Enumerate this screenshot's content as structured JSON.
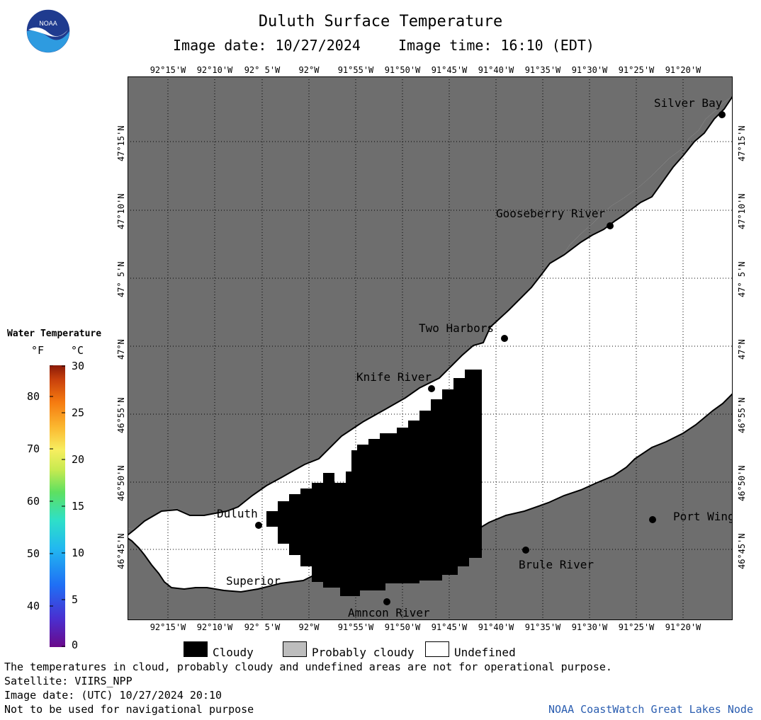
{
  "header": {
    "title": "Duluth Surface Temperature",
    "image_date": "Image date: 10/27/2024",
    "image_time": "Image time: 16:10 (EDT)"
  },
  "logo": {
    "text": "NOAA",
    "icon": "noaa-logo-icon",
    "colors": [
      "#1f3b8f",
      "#2e9be0",
      "#ffffff"
    ]
  },
  "map": {
    "colors": {
      "land": "#6e6e6e",
      "water_undefined": "#ffffff",
      "cloudy": "#000000",
      "grid": "#000000"
    },
    "lon_labels": [
      "92°15'W",
      "92°10'W",
      "92° 5'W",
      "92°W",
      "91°55'W",
      "91°50'W",
      "91°45'W",
      "91°40'W",
      "91°35'W",
      "91°30'W",
      "91°25'W",
      "91°20'W"
    ],
    "lon_labels_bottom": [
      "92°15'W",
      "92°10'W",
      "92° 5'W",
      "92°W",
      "91°55'W",
      "91°50'W",
      "91°45'W",
      "91°40'W",
      "91°35'W",
      "91°30'W",
      "91°25'W",
      "91°20'W"
    ],
    "lat_labels": [
      "47°15'N",
      "47°10'N",
      "47° 5'N",
      "47°N",
      "46°55'N",
      "46°50'N",
      "46°45'N"
    ],
    "places": [
      "Silver Bay",
      "Gooseberry River",
      "Two Harbors",
      "Knife River",
      "Duluth",
      "Superior",
      "Amncon River",
      "Brule River",
      "Port Wing"
    ]
  },
  "colorbar": {
    "title": "Water Temperature",
    "units": [
      "°F",
      "°C"
    ],
    "f_ticks": [
      "80",
      "70",
      "60",
      "50",
      "40"
    ],
    "c_ticks": [
      "30",
      "25",
      "20",
      "15",
      "10",
      "5",
      "0"
    ],
    "range_c": [
      0,
      30
    ],
    "range_f": [
      32,
      86
    ]
  },
  "legend": {
    "items": [
      {
        "label": "Cloudy",
        "color": "#000000"
      },
      {
        "label": "Probably cloudy",
        "color": "#bdbdbd"
      },
      {
        "label": "Undefined",
        "color": "#ffffff"
      }
    ]
  },
  "footer": {
    "line1": "The temperatures in cloud, probably cloudy and undefined areas are not for operational purpose.",
    "line2": "Satellite: VIIRS_NPP",
    "line3": "Image date: (UTC) 10/27/2024  20:10",
    "line4": "Not to be used for navigational purpose",
    "credit": "NOAA CoastWatch Great Lakes Node",
    "credit_color": "#2a5db0"
  }
}
